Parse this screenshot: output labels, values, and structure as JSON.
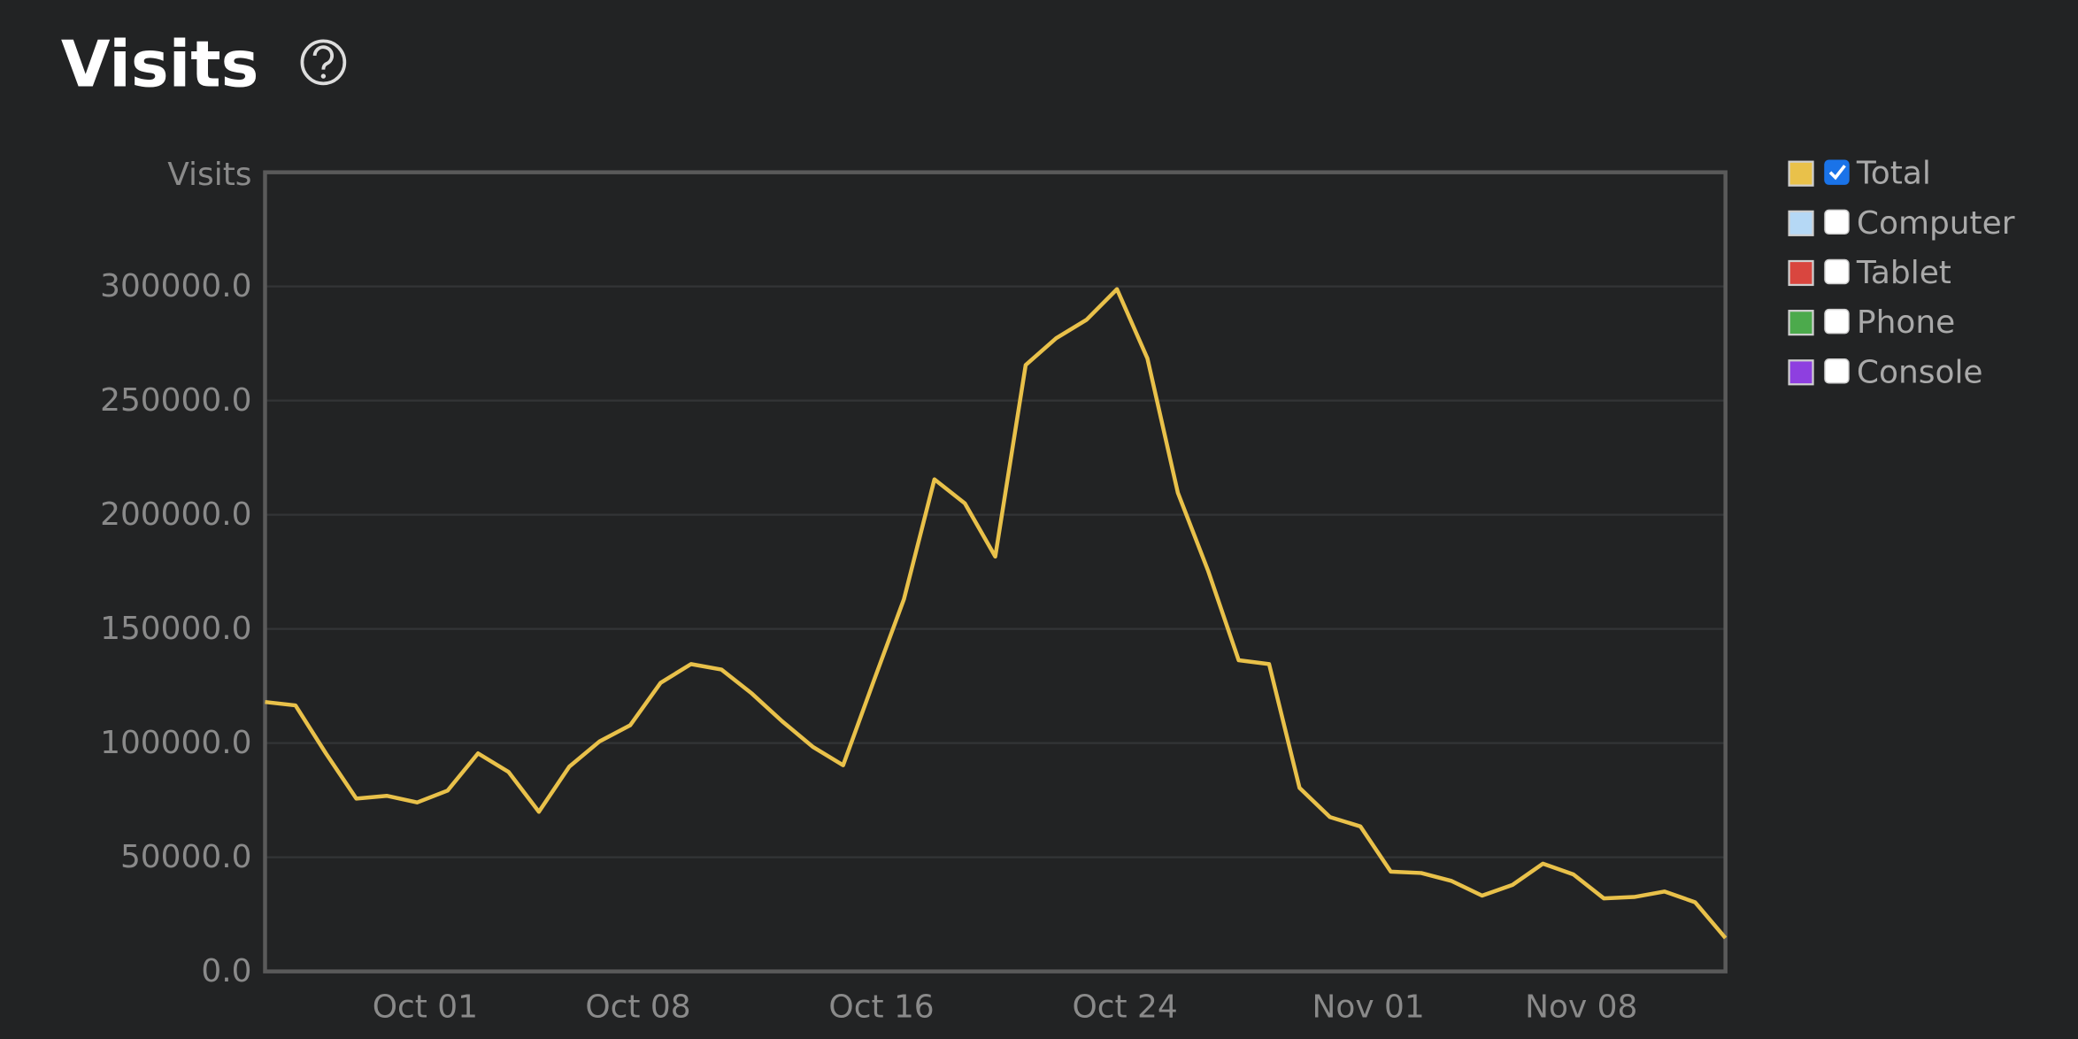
{
  "chart_data": {
    "type": "line",
    "title": "Visits",
    "y_label": "Visits",
    "categories": [
      null,
      null,
      null,
      null,
      null,
      "Oct 01",
      null,
      null,
      null,
      null,
      null,
      null,
      "Oct 08",
      null,
      null,
      null,
      null,
      null,
      null,
      null,
      "Oct 16",
      null,
      null,
      null,
      null,
      null,
      null,
      null,
      "Oct 24",
      null,
      null,
      null,
      null,
      null,
      null,
      null,
      "Nov 01",
      null,
      null,
      null,
      null,
      null,
      null,
      "Nov 08",
      null,
      null,
      null,
      null,
      null
    ],
    "series": [
      {
        "name": "Total",
        "color": "#e9c14a",
        "visible": true,
        "values": [
          118000,
          116500,
          95500,
          75700,
          76900,
          74000,
          79200,
          95500,
          87400,
          69900,
          89700,
          100800,
          107800,
          126400,
          134600,
          132200,
          121700,
          109500,
          98400,
          90300,
          127000,
          163100,
          215500,
          205000,
          181700,
          265600,
          277300,
          285400,
          298800,
          268500,
          209700,
          175300,
          136300,
          134600,
          80400,
          67600,
          63500,
          43700,
          43100,
          39600,
          33200,
          37900,
          47200,
          42500,
          32000,
          32600,
          35000,
          30300,
          14600
        ]
      },
      {
        "name": "Computer",
        "color": "#b5d8f5",
        "visible": false
      },
      {
        "name": "Tablet",
        "color": "#d9463f",
        "visible": false
      },
      {
        "name": "Phone",
        "color": "#4caa4c",
        "visible": false
      },
      {
        "name": "Console",
        "color": "#8e3fe0",
        "visible": false
      }
    ],
    "ylim": [
      0,
      350000
    ],
    "yticks": [
      {
        "value": 0,
        "label": "0.0"
      },
      {
        "value": 50000,
        "label": "50000.0"
      },
      {
        "value": 100000,
        "label": "100000.0"
      },
      {
        "value": 150000,
        "label": "150000.0"
      },
      {
        "value": 200000,
        "label": "200000.0"
      },
      {
        "value": 250000,
        "label": "250000.0"
      },
      {
        "value": 300000,
        "label": "300000.0"
      }
    ],
    "grid": true,
    "legend": "right"
  }
}
